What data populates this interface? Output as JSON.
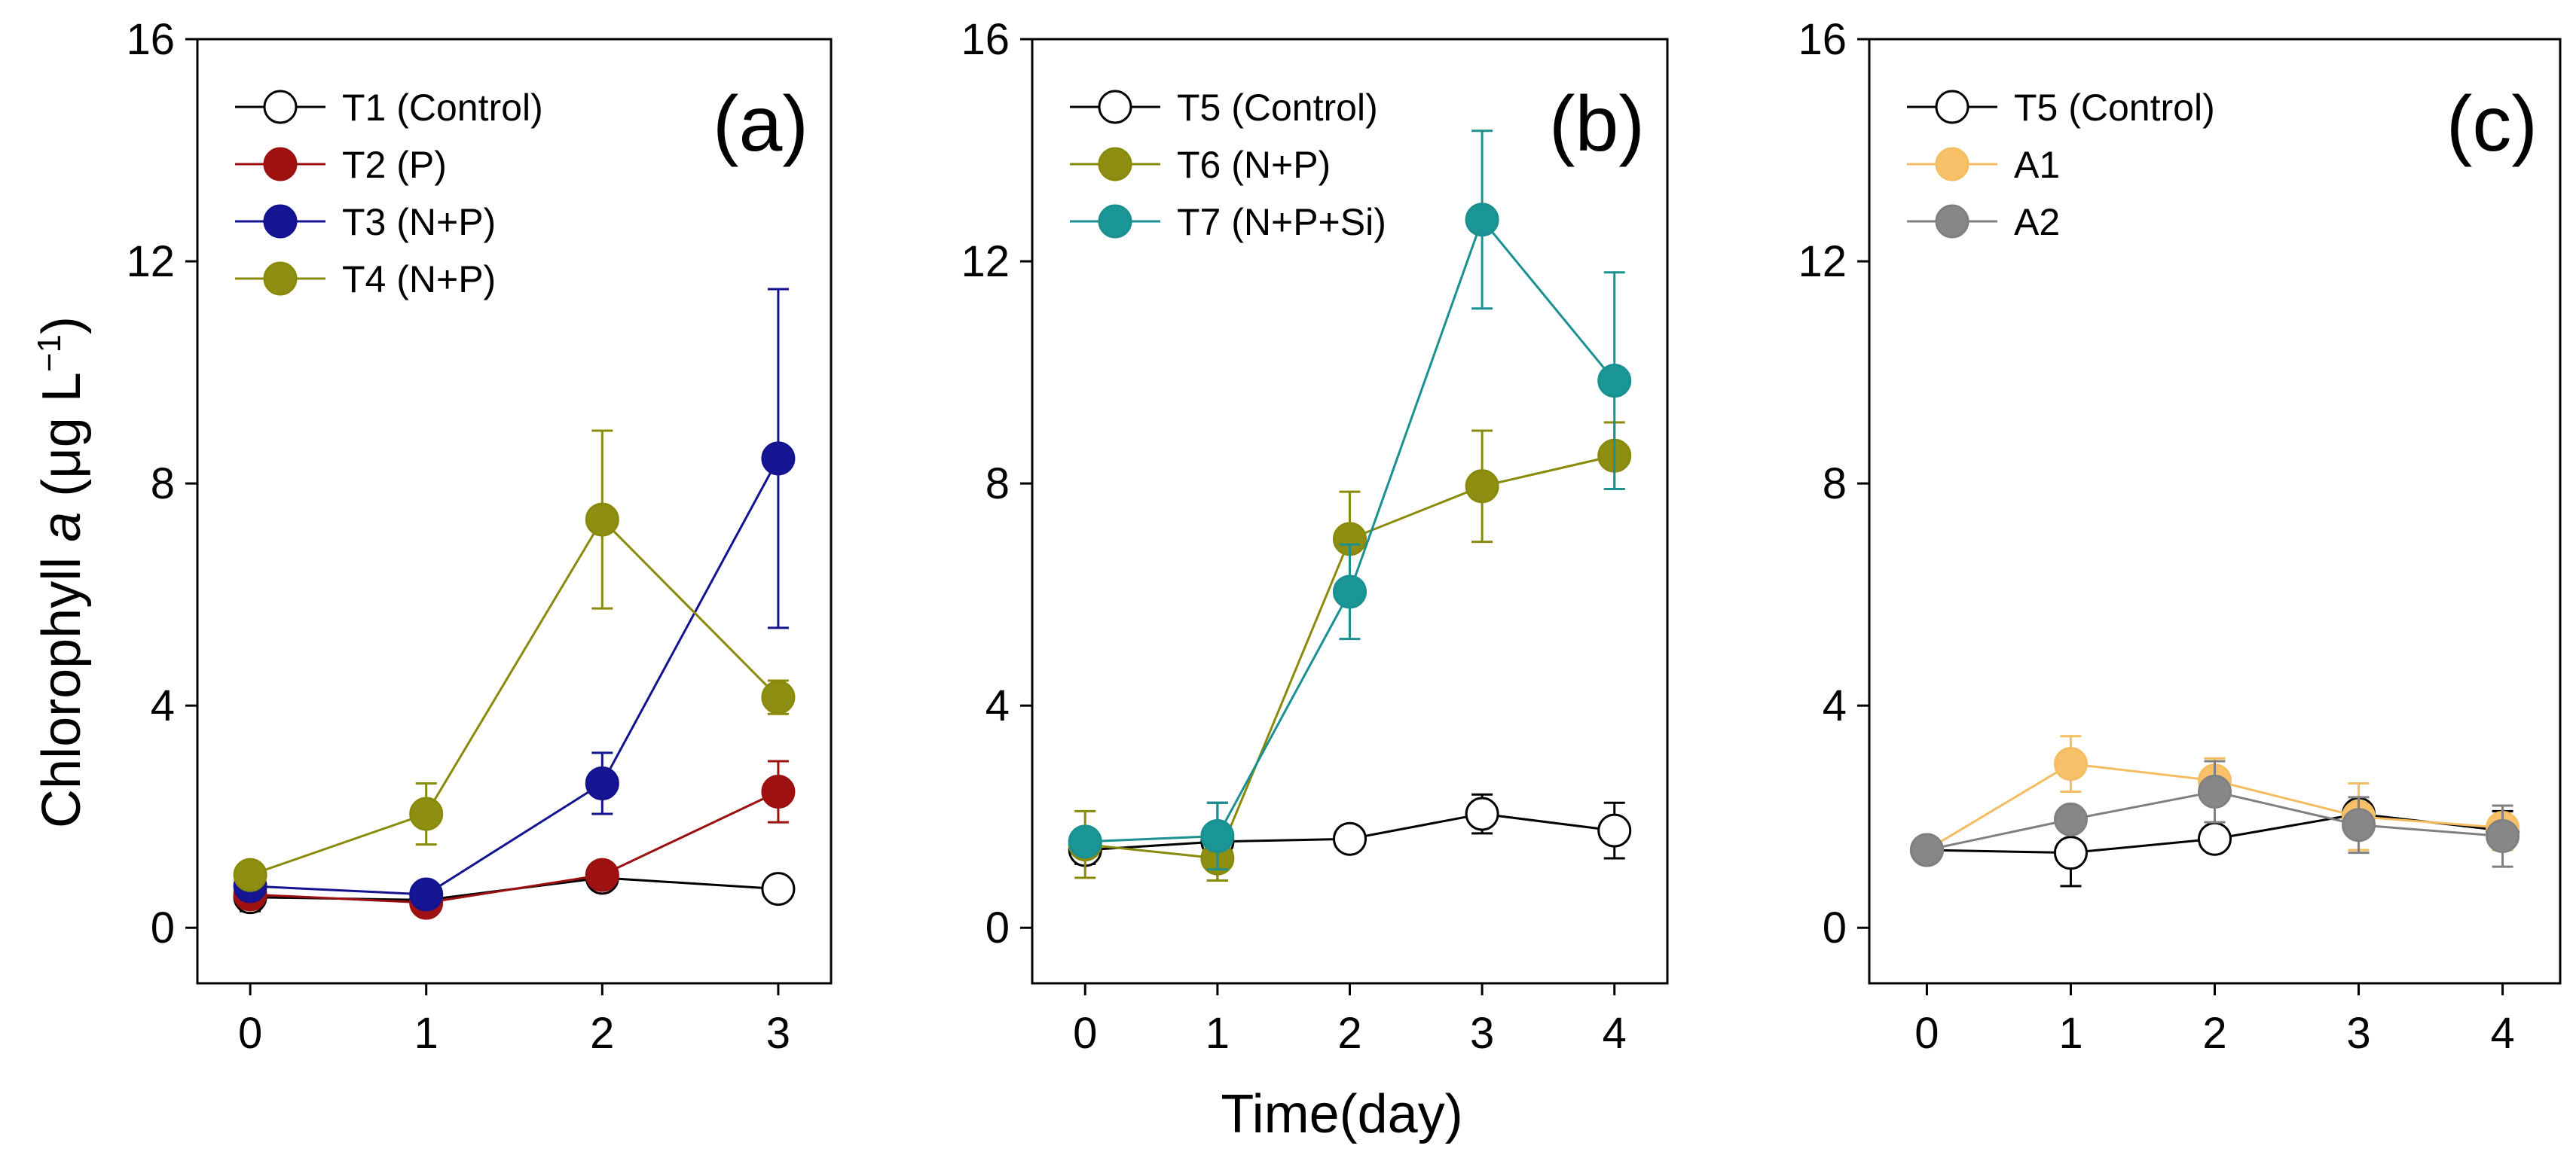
{
  "figure": {
    "ylabel_prefix": "Chlorophyll ",
    "ylabel_italic": "a",
    "ylabel_suffix": " (μg L",
    "ylabel_sup": "−1",
    "ylabel_close": ")",
    "xlabel": "Time(day)"
  },
  "chart_data": [
    {
      "type": "line",
      "panel_label": "(a)",
      "title": "",
      "xlabel": "",
      "ylabel": "Chlorophyll a (μg L−1)",
      "xlim": [
        -0.3,
        3.3
      ],
      "ylim": [
        -1,
        16
      ],
      "xticks": [
        0,
        1,
        2,
        3
      ],
      "yticks": [
        0,
        4,
        8,
        12,
        16
      ],
      "legend_position": "top-left",
      "x": [
        0,
        1,
        2,
        3
      ],
      "series": [
        {
          "name": "T1 (Control)",
          "values": [
            0.55,
            0.5,
            0.9,
            0.7
          ],
          "errors": [
            0.25,
            0.08,
            0.12,
            0.1
          ],
          "color": "#000000",
          "fill": "#ffffff"
        },
        {
          "name": "T2 (P)",
          "values": [
            0.6,
            0.45,
            0.95,
            2.45
          ],
          "errors": [
            0.1,
            0.08,
            0.15,
            0.55
          ],
          "color": "#9b1010",
          "fill": "#a01212"
        },
        {
          "name": "T3 (N+P)",
          "values": [
            0.75,
            0.6,
            2.6,
            8.45
          ],
          "errors": [
            0.1,
            0.08,
            0.55,
            3.05
          ],
          "color": "#131390",
          "fill": "#161694"
        },
        {
          "name": "T4 (N+P)",
          "values": [
            0.95,
            2.05,
            7.35,
            4.15
          ],
          "errors": [
            0.1,
            0.55,
            1.6,
            0.3
          ],
          "color": "#8a8a0a",
          "fill": "#8e8e12"
        }
      ]
    },
    {
      "type": "line",
      "panel_label": "(b)",
      "title": "",
      "xlabel": "Time(day)",
      "ylabel": "",
      "xlim": [
        -0.4,
        4.4
      ],
      "ylim": [
        -1,
        16
      ],
      "xticks": [
        0,
        1,
        2,
        3,
        4
      ],
      "yticks": [
        0,
        4,
        8,
        12,
        16
      ],
      "legend_position": "top-left",
      "x": [
        0,
        1,
        2,
        3,
        4
      ],
      "series": [
        {
          "name": "T5 (Control)",
          "values": [
            1.4,
            1.55,
            1.6,
            2.05,
            1.75
          ],
          "errors": [
            0.25,
            0.7,
            0.1,
            0.35,
            0.5
          ],
          "color": "#000000",
          "fill": "#ffffff"
        },
        {
          "name": "T6 (N+P)",
          "values": [
            1.5,
            1.25,
            7.0,
            7.95,
            8.5
          ],
          "errors": [
            0.6,
            0.4,
            0.85,
            1.0,
            0.6
          ],
          "color": "#8a8a0a",
          "fill": "#8e8e12"
        },
        {
          "name": "T7 (N+P+Si)",
          "values": [
            1.55,
            1.65,
            6.05,
            12.75,
            9.85
          ],
          "errors": [
            0.2,
            0.6,
            0.85,
            1.6,
            1.95
          ],
          "color": "#1a9090",
          "fill": "#1a9696"
        }
      ]
    },
    {
      "type": "line",
      "panel_label": "(c)",
      "title": "",
      "xlabel": "",
      "ylabel": "",
      "xlim": [
        -0.4,
        4.4
      ],
      "ylim": [
        -1,
        16
      ],
      "xticks": [
        0,
        1,
        2,
        3,
        4
      ],
      "yticks": [
        0,
        4,
        8,
        12,
        16
      ],
      "legend_position": "top-left",
      "x": [
        0,
        1,
        2,
        3,
        4
      ],
      "series": [
        {
          "name": "T5 (Control)",
          "values": [
            1.4,
            1.35,
            1.6,
            2.05,
            1.75
          ],
          "errors": [
            0.1,
            0.6,
            0.1,
            0.2,
            0.35
          ],
          "color": "#000000",
          "fill": "#ffffff"
        },
        {
          "name": "A1",
          "values": [
            1.4,
            2.95,
            2.65,
            2.0,
            1.8
          ],
          "errors": [
            0.1,
            0.5,
            0.4,
            0.6,
            0.4
          ],
          "color": "#f5bd62",
          "fill": "#f8c068"
        },
        {
          "name": "A2",
          "values": [
            1.4,
            1.95,
            2.45,
            1.85,
            1.65
          ],
          "errors": [
            0.1,
            0.15,
            0.55,
            0.5,
            0.55
          ],
          "color": "#808080",
          "fill": "#878787"
        }
      ]
    }
  ]
}
